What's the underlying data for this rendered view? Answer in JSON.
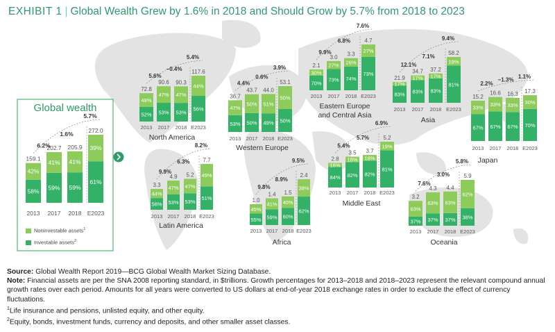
{
  "title": {
    "exhibit": "EXHIBIT 1",
    "text": "Global Wealth Grew by 1.6% in 2018 and Should Grow by 5.7% from 2018 to 2023"
  },
  "colors": {
    "noninvestable": "#8dcc5b",
    "investable": "#32b167",
    "noninvestable_dark": "#8dcc5b",
    "panel_border": "#52b478",
    "accent": "#2f9a6a",
    "map": "#e3e3e3"
  },
  "legend": {
    "noninvestable": "Noninvestable assets",
    "noninvestable_sup": "1",
    "investable": "Investable assets",
    "investable_sup": "2"
  },
  "chart_data": [
    {
      "type": "bar",
      "title": "Global wealth",
      "unit": "$trillions",
      "categories": [
        "2013",
        "2017",
        "2018",
        "E2023"
      ],
      "totals": [
        "159.1",
        "202.7",
        "205.9",
        "272.0"
      ],
      "series": [
        {
          "name": "Investable assets",
          "values": [
            58,
            59,
            59,
            61
          ]
        },
        {
          "name": "Noninvestable assets",
          "values": [
            42,
            41,
            41,
            39
          ]
        }
      ],
      "growth": [
        "6.2%",
        "1.6%",
        "5.7%"
      ]
    },
    {
      "type": "bar",
      "title": "North America",
      "categories": [
        "2013",
        "2017",
        "2018",
        "E2023"
      ],
      "totals": [
        "72.8",
        "90.6",
        "90.3",
        "117.6"
      ],
      "series": [
        {
          "name": "Investable assets",
          "values": [
            52,
            53,
            53,
            56
          ]
        },
        {
          "name": "Noninvestable assets",
          "values": [
            48,
            47,
            47,
            44
          ]
        }
      ],
      "growth": [
        "5.6%",
        "−0.4%",
        "5.4%"
      ]
    },
    {
      "type": "bar",
      "title": "Western Europe",
      "categories": [
        "2013",
        "2017",
        "2018",
        "E2023"
      ],
      "totals": [
        "36.7",
        "43.7",
        "44.0",
        "53.1"
      ],
      "series": [
        {
          "name": "Investable assets",
          "values": [
            53,
            50,
            49,
            50
          ]
        },
        {
          "name": "Noninvestable assets",
          "values": [
            47,
            50,
            51,
            50
          ]
        }
      ],
      "growth": [
        "4.4%",
        "0.6%",
        "3.9%"
      ]
    },
    {
      "type": "bar",
      "title": "Eastern Europe and Central Asia",
      "categories": [
        "2013",
        "2017",
        "2018",
        "E2023"
      ],
      "totals": [
        "2.1",
        "3.0",
        "3.3",
        "4.7"
      ],
      "series": [
        {
          "name": "Investable assets",
          "values": [
            70,
            73,
            74,
            73
          ]
        },
        {
          "name": "Noninvestable assets",
          "values": [
            30,
            27,
            26,
            27
          ]
        }
      ],
      "growth": [
        "9.9%",
        "6.8%",
        "7.6%"
      ]
    },
    {
      "type": "bar",
      "title": "Asia",
      "categories": [
        "2013",
        "2017",
        "2018",
        "E2023"
      ],
      "totals": [
        "21.9",
        "34.7",
        "37.2",
        "58.2"
      ],
      "series": [
        {
          "name": "Investable assets",
          "values": [
            83,
            83,
            83,
            81
          ]
        },
        {
          "name": "Noninvestable assets",
          "values": [
            17,
            17,
            17,
            19
          ]
        }
      ],
      "growth": [
        "12.1%",
        "7.1%",
        "9.4%"
      ]
    },
    {
      "type": "bar",
      "title": "Japan",
      "categories": [
        "2013",
        "2017",
        "2018",
        "E2023"
      ],
      "totals": [
        "15.2",
        "16.6",
        "16.3",
        "17.3"
      ],
      "series": [
        {
          "name": "Investable assets",
          "values": [
            67,
            67,
            67,
            70
          ]
        },
        {
          "name": "Noninvestable assets",
          "values": [
            33,
            33,
            33,
            30
          ]
        }
      ],
      "growth": [
        "2.2%",
        "−1.3%",
        "1.1%"
      ]
    },
    {
      "type": "bar",
      "title": "Latin America",
      "categories": [
        "2013",
        "2017",
        "2018",
        "E2023"
      ],
      "totals": [
        "3.3",
        "4.9",
        "5.2",
        "7.7"
      ],
      "series": [
        {
          "name": "Investable assets",
          "values": [
            56,
            53,
            53,
            51
          ]
        },
        {
          "name": "Noninvestable assets",
          "values": [
            44,
            47,
            47,
            49
          ]
        }
      ],
      "growth": [
        "9.9%",
        "6.3%",
        "8.2%"
      ]
    },
    {
      "type": "bar",
      "title": "Africa",
      "categories": [
        "2013",
        "2017",
        "2018",
        "E2023"
      ],
      "totals": [
        "1.0",
        "1.4",
        "1.5",
        "2.4"
      ],
      "series": [
        {
          "name": "Investable assets",
          "values": [
            55,
            59,
            60,
            62
          ]
        },
        {
          "name": "Noninvestable assets",
          "values": [
            45,
            41,
            40,
            38
          ]
        }
      ],
      "growth": [
        "9.8%",
        "8.9%",
        "9.5%"
      ]
    },
    {
      "type": "bar",
      "title": "Middle East",
      "categories": [
        "2013",
        "2017",
        "2018",
        "E2023"
      ],
      "totals": [
        "2.8",
        "3.5",
        "3.7",
        "5.2"
      ],
      "series": [
        {
          "name": "Investable assets",
          "values": [
            84,
            82,
            82,
            81
          ]
        },
        {
          "name": "Noninvestable assets",
          "values": [
            16,
            18,
            18,
            19
          ]
        }
      ],
      "growth": [
        "5.4%",
        "5.7%",
        "6.9%"
      ]
    },
    {
      "type": "bar",
      "title": "Oceania",
      "categories": [
        "2013",
        "2017",
        "2018",
        "E2023"
      ],
      "totals": [
        "3.2",
        "4.3",
        "4.4",
        "5.9"
      ],
      "series": [
        {
          "name": "Investable assets",
          "values": [
            37,
            37,
            37,
            38
          ]
        },
        {
          "name": "Noninvestable assets",
          "values": [
            63,
            63,
            63,
            62
          ]
        }
      ],
      "growth": [
        "7.6%",
        "3.0%",
        "5.8%"
      ]
    }
  ],
  "footnotes": {
    "source_label": "Source:",
    "source_text": " Global Wealth Report 2019—BCG Global Wealth Market Sizing Database.",
    "note_label": "Note:",
    "note_text": " Financial assets are per the SNA 2008 reporting standard, in $trillions. Growth percentages for 2013–2018 and 2018–2023 represent the relevant compound annual growth rates over each period. Amounts for all years were converted to US dollars at end-of-year 2018 exchange rates in order to exclude the effect of currency fluctuations.",
    "fn1_mark": "1",
    "fn1_text": "Life insurance and pensions, unlisted equity, and other equity.",
    "fn2_mark": "2",
    "fn2_text": "Equity, bonds, investment funds, currency and deposits, and other smaller asset classes."
  }
}
